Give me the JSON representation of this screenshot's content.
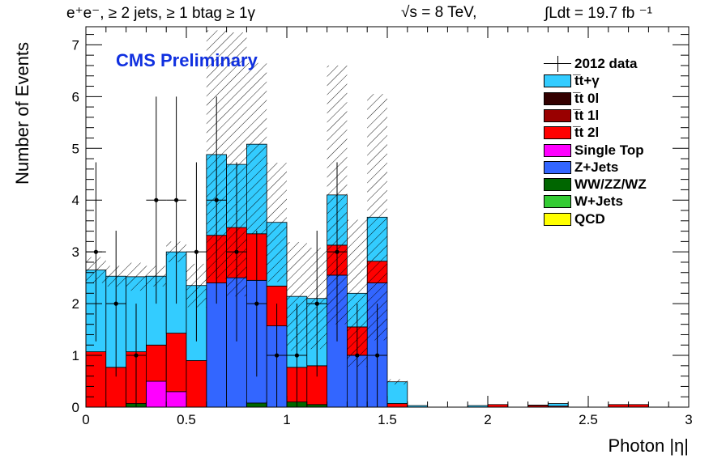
{
  "header": {
    "selection": "e⁺e⁻, ≥ 2 jets, ≥ 1 btag ≥ 1γ",
    "energy": "√s = 8 TeV,",
    "lumi": "∫Ldt = 19.7 fb ⁻¹"
  },
  "label": "CMS Preliminary",
  "chart_data": {
    "type": "bar",
    "stacked": true,
    "xlabel": "Photon |η|",
    "ylabel": "Number of Events",
    "xlim": [
      0,
      3
    ],
    "ylim": [
      0,
      7.35
    ],
    "bin_width": 0.1,
    "x_ticks": [
      "0",
      "0.5",
      "1",
      "1.5",
      "2",
      "2.5",
      "3"
    ],
    "y_ticks": [
      "0",
      "1",
      "2",
      "3",
      "4",
      "5",
      "6",
      "7"
    ],
    "legend_position": "top-right",
    "bin_edges": [
      0.0,
      0.1,
      0.2,
      0.3,
      0.4,
      0.5,
      0.6,
      0.7,
      0.8,
      0.9,
      1.0,
      1.1,
      1.2,
      1.3,
      1.4,
      1.5,
      1.6,
      1.7,
      1.8,
      1.9,
      2.0,
      2.1,
      2.2,
      2.3,
      2.4,
      2.5,
      2.6,
      2.7,
      2.8,
      2.9,
      3.0
    ],
    "series": [
      {
        "name": "QCD",
        "color": "#ffff00",
        "values": [
          0,
          0,
          0,
          0,
          0,
          0,
          0,
          0,
          0,
          0,
          0,
          0,
          0,
          0,
          0,
          0,
          0,
          0,
          0,
          0,
          0,
          0,
          0,
          0,
          0,
          0,
          0,
          0,
          0,
          0
        ]
      },
      {
        "name": "W+Jets",
        "color": "#33cc33",
        "values": [
          0,
          0,
          0,
          0,
          0,
          0,
          0,
          0,
          0,
          0,
          0,
          0,
          0,
          0,
          0,
          0,
          0,
          0,
          0,
          0,
          0,
          0,
          0,
          0,
          0,
          0,
          0,
          0,
          0,
          0
        ]
      },
      {
        "name": "WW/ZZ/WZ",
        "color": "#006600",
        "values": [
          0,
          0,
          0.07,
          0,
          0,
          0,
          0,
          0,
          0.08,
          0,
          0.1,
          0.05,
          0,
          0,
          0,
          0,
          0,
          0,
          0,
          0,
          0,
          0,
          0,
          0,
          0,
          0,
          0,
          0,
          0,
          0
        ]
      },
      {
        "name": "Z+Jets",
        "color": "#3366ff",
        "values": [
          0,
          0,
          0,
          0,
          0,
          0,
          2.4,
          2.5,
          2.37,
          1.57,
          0,
          0,
          2.55,
          1,
          2.4,
          0,
          0,
          0,
          0,
          0,
          0,
          0,
          0,
          0,
          0,
          0,
          0,
          0,
          0,
          0
        ]
      },
      {
        "name": "Single Top",
        "color": "#ff00ff",
        "values": [
          0,
          0,
          0,
          0.5,
          0.3,
          0,
          0,
          0,
          0,
          0,
          0,
          0,
          0,
          0,
          0,
          0,
          0,
          0,
          0,
          0,
          0,
          0,
          0,
          0,
          0,
          0,
          0,
          0,
          0,
          0
        ]
      },
      {
        "name": "t̅t 2l",
        "color": "#ff0000",
        "values": [
          1.07,
          0.77,
          1.0,
          0.7,
          1.13,
          0.9,
          0.92,
          0.97,
          0.9,
          0.77,
          0.67,
          0.75,
          0.58,
          0.55,
          0.42,
          0.07,
          0,
          0,
          0,
          0,
          0.05,
          0,
          0.03,
          0.02,
          0,
          0,
          0.05,
          0.05,
          0,
          0
        ]
      },
      {
        "name": "t̅t 1l",
        "color": "#990000",
        "values": [
          0,
          0,
          0,
          0,
          0,
          0,
          0,
          0,
          0,
          0,
          0,
          0,
          0,
          0,
          0,
          0,
          0,
          0,
          0,
          0,
          0,
          0,
          0,
          0,
          0,
          0,
          0,
          0,
          0,
          0
        ]
      },
      {
        "name": "t̅t 0l",
        "color": "#330000",
        "values": [
          0,
          0,
          0,
          0,
          0,
          0,
          0,
          0,
          0,
          0,
          0,
          0,
          0,
          0,
          0,
          0,
          0,
          0,
          0,
          0,
          0,
          0,
          0,
          0,
          0,
          0,
          0,
          0,
          0,
          0
        ]
      },
      {
        "name": "t̅t+γ",
        "color": "#33ccff",
        "values": [
          1.58,
          1.76,
          1.45,
          1.33,
          1.57,
          1.45,
          1.56,
          1.22,
          1.73,
          1.23,
          1.37,
          1.3,
          0.97,
          0.65,
          0.85,
          0.42,
          0.03,
          0,
          0,
          0.03,
          0,
          0,
          0.01,
          0.05,
          0,
          0,
          0,
          0,
          0,
          0
        ]
      }
    ],
    "uncertainty_band": {
      "center": [
        2.65,
        2.53,
        2.52,
        2.53,
        3.0,
        2.35,
        4.88,
        4.69,
        5.0,
        3.57,
        2.14,
        2.1,
        4.1,
        2.2,
        3.67,
        0.49,
        0.03,
        0,
        0,
        0.03,
        0.05,
        0,
        0.04,
        0.07,
        0,
        0,
        0.05,
        0.05,
        0,
        0
      ],
      "half_width": [
        0.25,
        0.2,
        0.27,
        0.2,
        0.2,
        0.42,
        2.4,
        2.55,
        1.65,
        1.15,
        1.05,
        0.98,
        2.5,
        1.42,
        2.38,
        0.05,
        0,
        0,
        0,
        0,
        0,
        0,
        0,
        0,
        0,
        0,
        0,
        0,
        0,
        0
      ]
    },
    "data": {
      "name": "2012 data",
      "x": [
        0.05,
        0.15,
        0.25,
        0.35,
        0.45,
        0.55,
        0.65,
        0.75,
        0.85,
        0.95,
        1.05,
        1.15,
        1.25,
        1.35,
        1.45
      ],
      "y": [
        3,
        2,
        1,
        4,
        4,
        3,
        4,
        3,
        2,
        1,
        1,
        2,
        3,
        1,
        1
      ],
      "err": [
        1.73,
        1.41,
        1.0,
        2.0,
        2.0,
        1.73,
        2.0,
        1.73,
        1.41,
        1.0,
        1.0,
        1.41,
        1.73,
        1.0,
        1.0
      ]
    },
    "legend": [
      {
        "label": "2012 data",
        "kind": "data"
      },
      {
        "label": "t̅t+γ",
        "color": "#33ccff"
      },
      {
        "label": "t̅t 0l",
        "color": "#330000"
      },
      {
        "label": "t̅t 1l",
        "color": "#990000"
      },
      {
        "label": "t̅t 2l",
        "color": "#ff0000"
      },
      {
        "label": "Single Top",
        "color": "#ff00ff"
      },
      {
        "label": "Z+Jets",
        "color": "#3366ff"
      },
      {
        "label": "WW/ZZ/WZ",
        "color": "#006600"
      },
      {
        "label": "W+Jets",
        "color": "#33cc33"
      },
      {
        "label": "QCD",
        "color": "#ffff00"
      }
    ]
  }
}
